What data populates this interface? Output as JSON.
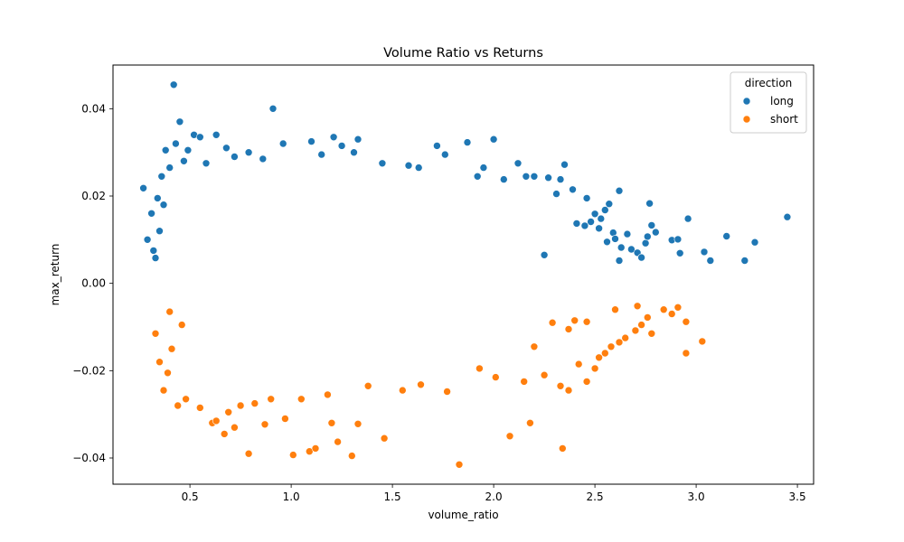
{
  "chart_data": {
    "type": "scatter",
    "title": "Volume Ratio vs Returns",
    "xlabel": "volume_ratio",
    "ylabel": "max_return",
    "xlim": [
      0.12,
      3.58
    ],
    "ylim": [
      -0.046,
      0.05
    ],
    "xticks": [
      0.5,
      1.0,
      1.5,
      2.0,
      2.5,
      3.0,
      3.5
    ],
    "xtick_labels": [
      "0.5",
      "1.0",
      "1.5",
      "2.0",
      "2.5",
      "3.0",
      "3.5"
    ],
    "yticks": [
      0.04,
      0.02,
      0.0,
      -0.02,
      -0.04
    ],
    "ytick_labels": [
      "0.04",
      "0.02",
      "0.00",
      "−0.02",
      "−0.04"
    ],
    "grid": false,
    "legend": {
      "title": "direction",
      "position": "top-right",
      "entries": [
        "long",
        "short"
      ]
    },
    "series": [
      {
        "name": "long",
        "color": "#1f77b4",
        "points": [
          [
            0.42,
            0.0455
          ],
          [
            0.91,
            0.04
          ],
          [
            0.45,
            0.037
          ],
          [
            0.63,
            0.034
          ],
          [
            0.52,
            0.034
          ],
          [
            0.55,
            0.0335
          ],
          [
            1.21,
            0.0335
          ],
          [
            1.33,
            0.033
          ],
          [
            2.0,
            0.033
          ],
          [
            1.25,
            0.0315
          ],
          [
            0.43,
            0.032
          ],
          [
            0.96,
            0.032
          ],
          [
            1.1,
            0.0325
          ],
          [
            1.72,
            0.0315
          ],
          [
            1.87,
            0.0323
          ],
          [
            0.38,
            0.0305
          ],
          [
            0.49,
            0.0305
          ],
          [
            0.68,
            0.031
          ],
          [
            1.31,
            0.03
          ],
          [
            1.76,
            0.0295
          ],
          [
            2.35,
            0.0272
          ],
          [
            2.12,
            0.0275
          ],
          [
            2.16,
            0.0245
          ],
          [
            2.2,
            0.0245
          ],
          [
            2.27,
            0.0242
          ],
          [
            2.33,
            0.0238
          ],
          [
            2.31,
            0.0205
          ],
          [
            2.39,
            0.0215
          ],
          [
            2.46,
            0.0195
          ],
          [
            2.62,
            0.0212
          ],
          [
            2.57,
            0.0182
          ],
          [
            2.55,
            0.0168
          ],
          [
            2.5,
            0.0159
          ],
          [
            2.53,
            0.0148
          ],
          [
            2.48,
            0.0141
          ],
          [
            2.45,
            0.0132
          ],
          [
            2.41,
            0.0137
          ],
          [
            2.52,
            0.0126
          ],
          [
            2.59,
            0.0116
          ],
          [
            2.66,
            0.0113
          ],
          [
            2.6,
            0.0102
          ],
          [
            2.56,
            0.0095
          ],
          [
            2.63,
            0.0082
          ],
          [
            2.68,
            0.0078
          ],
          [
            2.75,
            0.0092
          ],
          [
            2.71,
            0.007
          ],
          [
            2.73,
            0.0059
          ],
          [
            2.62,
            0.0052
          ],
          [
            2.77,
            0.0183
          ],
          [
            2.78,
            0.0133
          ],
          [
            2.8,
            0.0117
          ],
          [
            2.76,
            0.0107
          ],
          [
            2.88,
            0.0099
          ],
          [
            2.91,
            0.0101
          ],
          [
            2.92,
            0.0069
          ],
          [
            2.96,
            0.0148
          ],
          [
            3.04,
            0.0072
          ],
          [
            3.07,
            0.0052
          ],
          [
            3.15,
            0.0108
          ],
          [
            3.24,
            0.0052
          ],
          [
            3.29,
            0.0094
          ],
          [
            3.45,
            0.0152
          ],
          [
            0.27,
            0.0218
          ],
          [
            0.29,
            0.01
          ],
          [
            0.31,
            0.016
          ],
          [
            0.32,
            0.0075
          ],
          [
            0.34,
            0.0195
          ],
          [
            0.36,
            0.0245
          ],
          [
            0.4,
            0.0265
          ],
          [
            0.35,
            0.012
          ],
          [
            0.37,
            0.018
          ],
          [
            0.33,
            0.0058
          ],
          [
            0.47,
            0.028
          ],
          [
            0.58,
            0.0275
          ],
          [
            0.72,
            0.029
          ],
          [
            0.79,
            0.03
          ],
          [
            0.86,
            0.0285
          ],
          [
            1.15,
            0.0295
          ],
          [
            1.45,
            0.0275
          ],
          [
            1.58,
            0.027
          ],
          [
            1.63,
            0.0265
          ],
          [
            1.95,
            0.0265
          ],
          [
            1.92,
            0.0245
          ],
          [
            2.05,
            0.0238
          ],
          [
            2.25,
            0.0065
          ]
        ]
      },
      {
        "name": "short",
        "color": "#ff7f0e",
        "points": [
          [
            1.83,
            -0.0415
          ],
          [
            0.79,
            -0.039
          ],
          [
            1.01,
            -0.0393
          ],
          [
            1.09,
            -0.0385
          ],
          [
            1.12,
            -0.0378
          ],
          [
            1.3,
            -0.0395
          ],
          [
            2.34,
            -0.0378
          ],
          [
            1.46,
            -0.0355
          ],
          [
            2.08,
            -0.035
          ],
          [
            1.23,
            -0.0363
          ],
          [
            0.67,
            -0.0345
          ],
          [
            0.72,
            -0.033
          ],
          [
            0.87,
            -0.0323
          ],
          [
            0.97,
            -0.031
          ],
          [
            1.2,
            -0.032
          ],
          [
            1.33,
            -0.0322
          ],
          [
            2.18,
            -0.032
          ],
          [
            0.61,
            -0.032
          ],
          [
            1.55,
            -0.0245
          ],
          [
            1.77,
            -0.0248
          ],
          [
            2.01,
            -0.0215
          ],
          [
            2.15,
            -0.0225
          ],
          [
            2.33,
            -0.0235
          ],
          [
            2.25,
            -0.021
          ],
          [
            2.37,
            -0.0245
          ],
          [
            2.46,
            -0.0225
          ],
          [
            2.42,
            -0.0185
          ],
          [
            2.5,
            -0.0195
          ],
          [
            2.52,
            -0.017
          ],
          [
            2.55,
            -0.016
          ],
          [
            2.58,
            -0.0145
          ],
          [
            2.62,
            -0.0135
          ],
          [
            2.65,
            -0.0125
          ],
          [
            2.7,
            -0.0108
          ],
          [
            2.73,
            -0.0095
          ],
          [
            2.76,
            -0.0078
          ],
          [
            2.78,
            -0.0115
          ],
          [
            2.84,
            -0.006
          ],
          [
            2.88,
            -0.007
          ],
          [
            2.91,
            -0.0055
          ],
          [
            2.95,
            -0.0088
          ],
          [
            2.95,
            -0.016
          ],
          [
            3.03,
            -0.0133
          ],
          [
            2.71,
            -0.0052
          ],
          [
            2.6,
            -0.006
          ],
          [
            2.46,
            -0.0088
          ],
          [
            2.4,
            -0.0085
          ],
          [
            2.37,
            -0.0105
          ],
          [
            2.29,
            -0.009
          ],
          [
            2.2,
            -0.0145
          ],
          [
            0.33,
            -0.0115
          ],
          [
            0.35,
            -0.018
          ],
          [
            0.37,
            -0.0245
          ],
          [
            0.39,
            -0.0205
          ],
          [
            0.44,
            -0.028
          ],
          [
            0.48,
            -0.0265
          ],
          [
            0.55,
            -0.0285
          ],
          [
            0.63,
            -0.0315
          ],
          [
            0.69,
            -0.0295
          ],
          [
            0.75,
            -0.028
          ],
          [
            0.82,
            -0.0275
          ],
          [
            0.9,
            -0.0265
          ],
          [
            1.05,
            -0.0265
          ],
          [
            1.18,
            -0.0255
          ],
          [
            1.38,
            -0.0235
          ],
          [
            1.64,
            -0.0232
          ],
          [
            1.93,
            -0.0195
          ],
          [
            0.41,
            -0.015
          ],
          [
            0.46,
            -0.0095
          ],
          [
            0.4,
            -0.0065
          ]
        ]
      }
    ]
  }
}
